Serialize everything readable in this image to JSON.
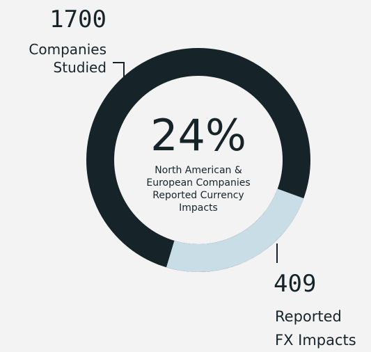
{
  "chart_data": {
    "type": "donut",
    "categories": [
      "Companies\nStudied",
      "Reported\nFX Impacts"
    ],
    "values": [
      1700,
      409
    ],
    "colors": [
      "#16242a",
      "#c9dde6"
    ],
    "center": {
      "value": 24,
      "label": "24%"
    },
    "center_text": "North American &\nEuropean Companies\nReported Currency\nImpacts"
  }
}
